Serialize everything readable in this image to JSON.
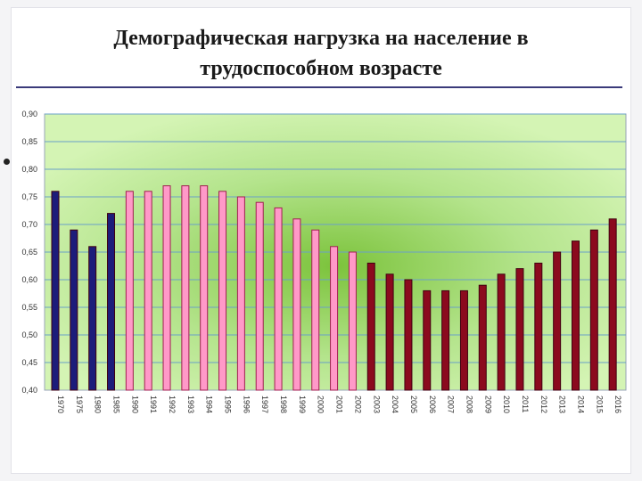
{
  "slide": {
    "title_line1": "Демографическая нагрузка на население в",
    "title_line2": "трудоспособном возрасте"
  },
  "chart_data": {
    "type": "bar",
    "title": "Демографическая нагрузка на население в трудоспособном возрасте",
    "categories": [
      "1970",
      "1975",
      "1980",
      "1985",
      "1990",
      "1991",
      "1992",
      "1993",
      "1994",
      "1995",
      "1996",
      "1997",
      "1998",
      "1999",
      "2000",
      "2001",
      "2002",
      "2003",
      "2004",
      "2005",
      "2006",
      "2007",
      "2008",
      "2009",
      "2010",
      "2011",
      "2012",
      "2013",
      "2014",
      "2015",
      "2016"
    ],
    "values": [
      0.76,
      0.69,
      0.66,
      0.72,
      0.76,
      0.76,
      0.77,
      0.77,
      0.77,
      0.76,
      0.75,
      0.74,
      0.73,
      0.71,
      0.69,
      0.66,
      0.65,
      0.63,
      0.61,
      0.6,
      0.58,
      0.58,
      0.58,
      0.59,
      0.61,
      0.62,
      0.63,
      0.65,
      0.67,
      0.69,
      0.71
    ],
    "bar_colors": [
      "#1c1c7a",
      "#1c1c7a",
      "#1c1c7a",
      "#1c1c7a",
      "#ff99c8",
      "#ff99c8",
      "#ff99c8",
      "#ff99c8",
      "#ff99c8",
      "#ff99c8",
      "#ff99c8",
      "#ff99c8",
      "#ff99c8",
      "#ff99c8",
      "#ff99c8",
      "#ff99c8",
      "#ff99c8",
      "#8b0a1e",
      "#8b0a1e",
      "#8b0a1e",
      "#8b0a1e",
      "#8b0a1e",
      "#8b0a1e",
      "#8b0a1e",
      "#8b0a1e",
      "#8b0a1e",
      "#8b0a1e",
      "#8b0a1e",
      "#8b0a1e",
      "#8b0a1e",
      "#8b0a1e"
    ],
    "ylim": [
      0.4,
      0.9
    ],
    "yticks": [
      "0,40",
      "0,45",
      "0,50",
      "0,55",
      "0,60",
      "0,65",
      "0,70",
      "0,75",
      "0,80",
      "0,85",
      "0,90"
    ],
    "grid": true,
    "legend": false,
    "colors": {
      "plot_bg": "#c8f0a0",
      "plot_center": "#7cc33c",
      "gridline": "#6aa0c8",
      "frame": "#9aa4b8"
    }
  }
}
